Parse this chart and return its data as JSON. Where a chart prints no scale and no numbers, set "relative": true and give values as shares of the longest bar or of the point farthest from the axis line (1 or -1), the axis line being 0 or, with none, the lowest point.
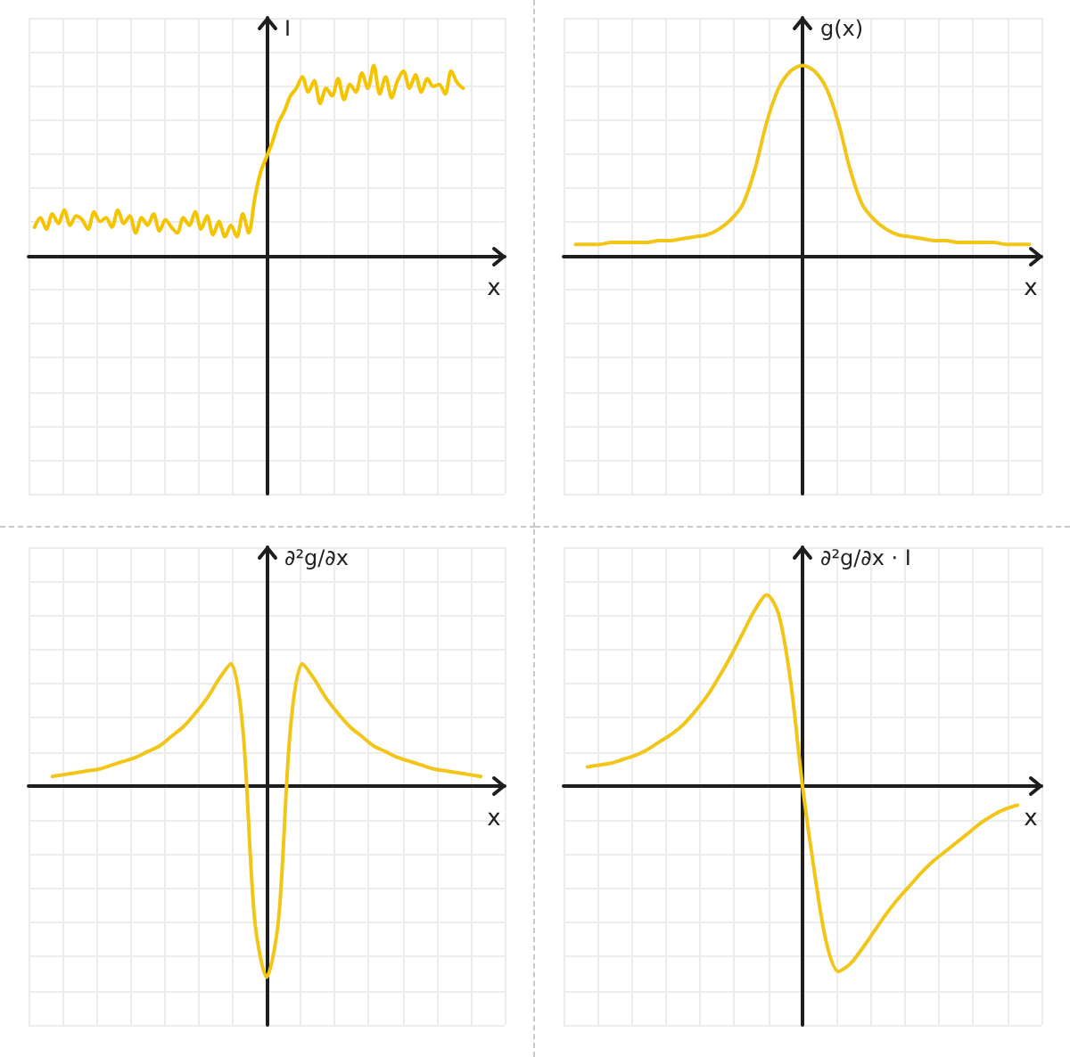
{
  "chart_data": [
    {
      "type": "line",
      "relative": true,
      "xlabel": "x",
      "ylabel": "I",
      "grid": true,
      "categories": [
        null,
        null,
        null,
        null,
        null,
        null,
        null,
        null,
        null,
        null,
        null,
        null,
        null,
        null,
        null,
        null,
        null,
        null,
        null,
        null,
        null,
        null,
        null,
        null,
        null,
        null,
        null,
        null,
        null,
        null,
        null,
        null,
        null,
        null,
        null,
        null,
        null,
        null,
        null,
        null,
        null,
        null,
        null,
        null,
        null,
        null,
        null,
        null,
        null,
        null,
        null,
        null,
        null,
        null,
        null,
        null,
        null,
        null,
        null,
        null,
        null,
        null,
        null,
        null,
        null,
        null,
        null,
        null,
        null,
        null,
        null,
        null,
        null,
        null,
        null,
        null,
        null,
        null,
        null,
        null,
        null
      ],
      "series": [
        {
          "color": "#f5c400",
          "values": [
            null,
            0.15,
            0.2,
            0.14,
            0.22,
            0.17,
            0.24,
            0.16,
            0.21,
            0.19,
            0.14,
            0.23,
            0.18,
            0.2,
            0.15,
            0.24,
            0.17,
            0.21,
            0.12,
            0.2,
            0.16,
            0.22,
            0.13,
            0.19,
            0.15,
            0.12,
            0.2,
            0.16,
            0.23,
            0.14,
            0.21,
            0.11,
            0.18,
            0.1,
            0.16,
            0.1,
            0.22,
            0.12,
            0.3,
            0.44,
            0.52,
            0.6,
            0.7,
            0.76,
            0.84,
            0.88,
            0.94,
            0.86,
            0.92,
            0.8,
            0.88,
            0.84,
            0.93,
            0.82,
            0.9,
            0.86,
            0.96,
            0.88,
            1,
            0.85,
            0.94,
            0.83,
            0.92,
            0.97,
            0.88,
            0.95,
            0.86,
            0.93,
            0.89,
            0.9,
            0.85,
            0.97,
            0.91,
            0.88,
            null,
            null,
            null,
            null,
            null,
            null,
            null
          ]
        }
      ]
    },
    {
      "type": "line",
      "relative": true,
      "xlabel": "x",
      "ylabel": "g(x)",
      "grid": true,
      "categories": [
        null,
        null,
        null,
        null,
        null,
        null,
        null,
        null,
        null,
        null,
        null,
        null,
        null,
        null,
        null,
        null,
        null,
        null,
        null,
        null,
        null,
        null,
        null,
        null,
        null,
        null,
        null,
        null,
        null,
        null,
        null,
        null,
        null,
        null,
        null,
        null,
        null,
        null,
        null,
        null,
        null
      ],
      "series": [
        {
          "color": "#f2c618",
          "values": [
            null,
            0.06,
            0.06,
            0.06,
            0.07,
            0.07,
            0.07,
            0.07,
            0.08,
            0.08,
            0.09,
            0.1,
            0.11,
            0.14,
            0.19,
            0.27,
            0.45,
            0.7,
            0.88,
            0.97,
            1,
            0.97,
            0.88,
            0.7,
            0.45,
            0.27,
            0.19,
            0.14,
            0.11,
            0.1,
            0.09,
            0.08,
            0.08,
            0.07,
            0.07,
            0.07,
            0.07,
            0.06,
            0.06,
            0.06,
            null
          ]
        }
      ]
    },
    {
      "type": "line",
      "relative": true,
      "xlabel": "x",
      "ylabel": "∂²g/∂x",
      "grid": true,
      "categories": [
        null,
        null,
        null,
        null,
        null,
        null,
        null,
        null,
        null,
        null,
        null,
        null,
        null,
        null,
        null,
        null,
        null,
        null,
        null,
        null,
        null,
        null,
        null,
        null,
        null,
        null,
        null,
        null,
        null,
        null,
        null,
        null,
        null,
        null,
        null,
        null,
        null,
        null,
        null,
        null,
        null
      ],
      "series": [
        {
          "color": "#f2c618",
          "values": [
            null,
            null,
            0.05,
            0.06,
            0.07,
            0.08,
            0.09,
            0.11,
            0.13,
            0.15,
            0.18,
            0.21,
            0.26,
            0.31,
            0.38,
            0.46,
            0.56,
            0.64,
            0.3,
            -0.7,
            -1,
            -0.7,
            0.3,
            0.64,
            0.56,
            0.46,
            0.38,
            0.31,
            0.26,
            0.21,
            0.18,
            0.15,
            0.13,
            0.11,
            0.09,
            0.08,
            0.07,
            0.06,
            0.05,
            null,
            null
          ]
        }
      ]
    },
    {
      "type": "line",
      "relative": true,
      "xlabel": "x",
      "ylabel": "∂²g/∂x · I",
      "grid": true,
      "categories": [
        null,
        null,
        null,
        null,
        null,
        null,
        null,
        null,
        null,
        null,
        null,
        null,
        null,
        null,
        null,
        null,
        null,
        null,
        null,
        null,
        null,
        null,
        null,
        null,
        null,
        null,
        null,
        null,
        null,
        null,
        null,
        null,
        null,
        null,
        null,
        null,
        null,
        null,
        null,
        null,
        null
      ],
      "series": [
        {
          "color": "#f2c618",
          "values": [
            null,
            null,
            0.1,
            0.11,
            0.12,
            0.14,
            0.16,
            0.19,
            0.23,
            0.27,
            0.32,
            0.39,
            0.47,
            0.57,
            0.68,
            0.8,
            0.92,
            1,
            0.9,
            0.55,
            0,
            -0.45,
            -0.82,
            -0.97,
            -0.93,
            -0.85,
            -0.76,
            -0.67,
            -0.59,
            -0.52,
            -0.45,
            -0.39,
            -0.34,
            -0.29,
            -0.24,
            -0.19,
            -0.15,
            -0.12,
            -0.1,
            null,
            null
          ]
        }
      ]
    }
  ]
}
